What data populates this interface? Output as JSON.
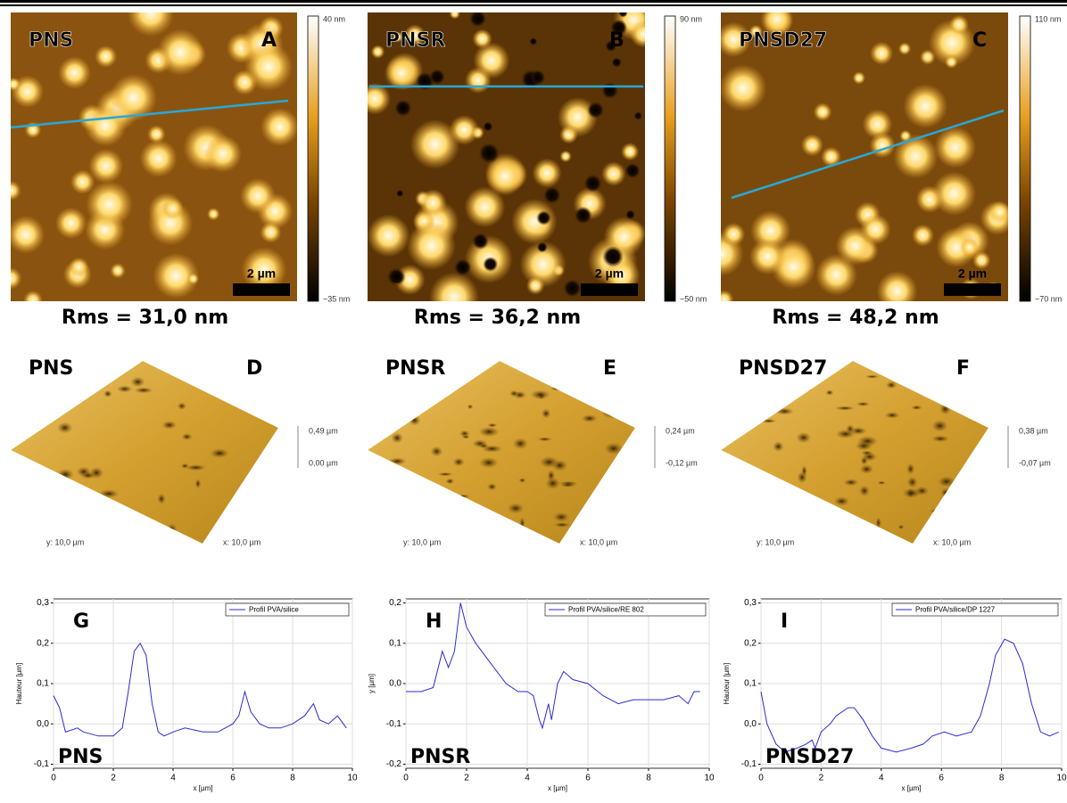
{
  "afm_images": [
    {
      "sample": "PNS",
      "panel": "A",
      "colorbar_max": "40 nm",
      "colorbar_min": "−35 nm",
      "scale_bar": "2 µm",
      "rms": "Rms = 31,0 nm"
    },
    {
      "sample": "PNSR",
      "panel": "B",
      "colorbar_max": "90 nm",
      "colorbar_min": "−50 nm",
      "scale_bar": "2 µm",
      "rms": "Rms = 36,2 nm"
    },
    {
      "sample": "PNSD27",
      "panel": "C",
      "colorbar_max": "110 nm",
      "colorbar_min": "−70 nm",
      "scale_bar": "2 µm",
      "rms": "Rms = 48,2 nm"
    }
  ],
  "surfaces_3d": [
    {
      "sample": "PNS",
      "panel": "D",
      "z_max": "0,49 µm",
      "z_min": "0,00 µm",
      "y_axis": "y: 10,0 µm",
      "x_axis": "x: 10,0 µm"
    },
    {
      "sample": "PNSR",
      "panel": "E",
      "z_max": "0,24 µm",
      "z_min": "-0,12 µm",
      "y_axis": "y: 10,0 µm",
      "x_axis": "x: 10,0 µm"
    },
    {
      "sample": "PNSD27",
      "panel": "F",
      "z_max": "0,38 µm",
      "z_min": "-0,07 µm",
      "y_axis": "y: 10,0 µm",
      "x_axis": "x: 10,0 µm"
    }
  ],
  "chart_data": [
    {
      "type": "line",
      "panel": "G",
      "annotation": "PNS",
      "x_label": "x [µm]",
      "y_label": "Hauteur [µm]",
      "xlim": [
        0,
        10
      ],
      "ylim": [
        -0.11,
        0.31
      ],
      "xticks": [
        0,
        2,
        4,
        6,
        8,
        10
      ],
      "yticks": [
        {
          "value": -0.1,
          "label": "-0,1"
        },
        {
          "value": 0,
          "label": "0,0"
        },
        {
          "value": 0.1,
          "label": "0,1"
        },
        {
          "value": 0.2,
          "label": "0,2"
        },
        {
          "value": 0.3,
          "label": "0,3"
        }
      ],
      "grid": true,
      "legend": "upper right",
      "x": [
        0,
        0.2,
        0.4,
        0.8,
        1.0,
        1.5,
        2.0,
        2.3,
        2.5,
        2.7,
        2.9,
        3.1,
        3.3,
        3.5,
        3.7,
        4.0,
        4.4,
        5.0,
        5.5,
        6.0,
        6.2,
        6.4,
        6.6,
        6.9,
        7.2,
        7.6,
        8.0,
        8.4,
        8.7,
        8.9,
        9.2,
        9.5,
        9.8
      ],
      "series": [
        {
          "name": "Profil PVA/silice",
          "color": "#2b2bd6",
          "values": [
            0.07,
            0.04,
            -0.02,
            -0.01,
            -0.02,
            -0.03,
            -0.03,
            -0.01,
            0.08,
            0.18,
            0.2,
            0.17,
            0.05,
            -0.02,
            -0.03,
            -0.02,
            -0.01,
            -0.02,
            -0.02,
            0.0,
            0.02,
            0.08,
            0.03,
            0.0,
            -0.01,
            -0.01,
            0.0,
            0.02,
            0.05,
            0.01,
            0.0,
            0.02,
            -0.01
          ]
        }
      ]
    },
    {
      "type": "line",
      "panel": "H",
      "annotation": "PNSR",
      "x_label": "x [µm]",
      "y_label": "y [µm]",
      "xlim": [
        0,
        10
      ],
      "ylim": [
        -0.21,
        0.21
      ],
      "xticks": [
        0,
        2,
        4,
        6,
        8,
        10
      ],
      "yticks": [
        {
          "value": -0.2,
          "label": "-0,2"
        },
        {
          "value": -0.1,
          "label": "-0,1"
        },
        {
          "value": 0,
          "label": "0,0"
        },
        {
          "value": 0.1,
          "label": "0,1"
        },
        {
          "value": 0.2,
          "label": "0,2"
        }
      ],
      "grid": true,
      "legend": "upper right",
      "x": [
        0,
        0.5,
        0.9,
        1.1,
        1.2,
        1.4,
        1.6,
        1.8,
        2.0,
        2.3,
        2.8,
        3.3,
        3.7,
        4.0,
        4.2,
        4.4,
        4.5,
        4.7,
        4.8,
        5.0,
        5.2,
        5.5,
        6.0,
        6.5,
        7.0,
        7.5,
        8.0,
        8.5,
        9.0,
        9.3,
        9.5,
        9.7
      ],
      "series": [
        {
          "name": "Profil PVA/silice/RE 802",
          "color": "#2b2bd6",
          "values": [
            -0.02,
            -0.02,
            -0.01,
            0.05,
            0.08,
            0.04,
            0.08,
            0.2,
            0.14,
            0.1,
            0.05,
            0.0,
            -0.02,
            -0.02,
            -0.03,
            -0.09,
            -0.11,
            -0.05,
            -0.09,
            0.0,
            0.03,
            0.01,
            0.0,
            -0.03,
            -0.05,
            -0.04,
            -0.04,
            -0.04,
            -0.03,
            -0.05,
            -0.02,
            -0.02
          ]
        }
      ]
    },
    {
      "type": "line",
      "panel": "I",
      "annotation": "PNSD27",
      "x_label": "x [µm]",
      "y_label": "Hauteur [µm]",
      "xlim": [
        0,
        10
      ],
      "ylim": [
        -0.11,
        0.31
      ],
      "xticks": [
        0,
        2,
        4,
        6,
        8,
        10
      ],
      "yticks": [
        {
          "value": -0.1,
          "label": "-0,1"
        },
        {
          "value": 0,
          "label": "0,0"
        },
        {
          "value": 0.1,
          "label": "0,1"
        },
        {
          "value": 0.2,
          "label": "0,2"
        },
        {
          "value": 0.3,
          "label": "0,3"
        }
      ],
      "grid": true,
      "legend": "upper right",
      "x": [
        0,
        0.2,
        0.5,
        0.8,
        1.2,
        1.5,
        1.7,
        1.8,
        2.0,
        2.3,
        2.5,
        2.9,
        3.1,
        3.4,
        3.7,
        4.0,
        4.5,
        5.0,
        5.4,
        5.7,
        6.1,
        6.5,
        7.0,
        7.3,
        7.6,
        7.8,
        8.1,
        8.4,
        8.7,
        9.0,
        9.3,
        9.6,
        9.9
      ],
      "series": [
        {
          "name": "Profil PVA/silice/DP 1227",
          "color": "#2b2bd6",
          "values": [
            0.08,
            0.0,
            -0.05,
            -0.07,
            -0.06,
            -0.05,
            -0.04,
            -0.06,
            -0.02,
            0.0,
            0.02,
            0.04,
            0.04,
            0.01,
            -0.03,
            -0.06,
            -0.07,
            -0.06,
            -0.05,
            -0.03,
            -0.02,
            -0.03,
            -0.02,
            0.02,
            0.1,
            0.17,
            0.21,
            0.2,
            0.15,
            0.05,
            -0.02,
            -0.03,
            -0.02
          ]
        }
      ]
    }
  ]
}
